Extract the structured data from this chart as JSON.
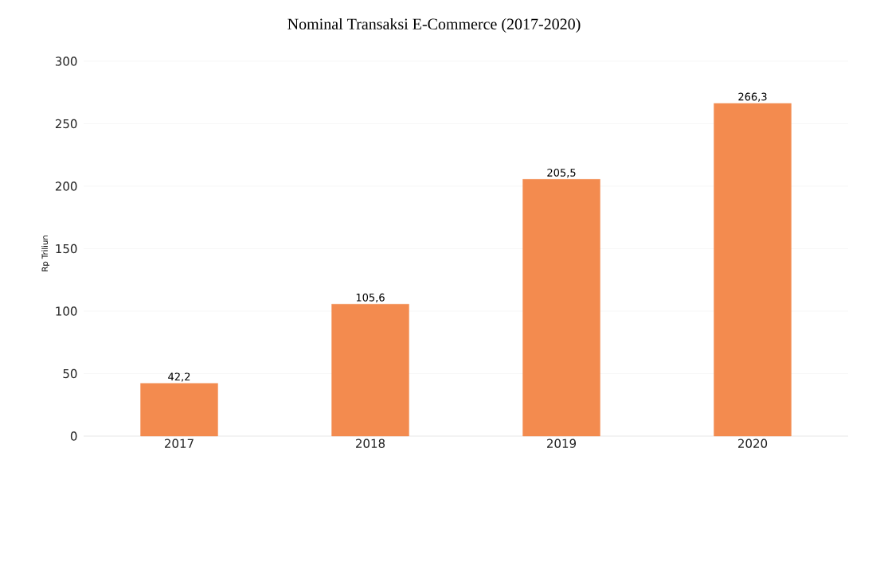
{
  "chart_data": {
    "type": "bar",
    "title": "Nominal Transaksi E-Commerce (2017-2020)",
    "ylabel": "Rp Triliun",
    "categories": [
      "2017",
      "2018",
      "2019",
      "2020"
    ],
    "values": [
      42.2,
      105.6,
      205.5,
      266.3
    ],
    "value_labels": [
      "42,2",
      "105,6",
      "205,5",
      "266,3"
    ],
    "color": "#f38b4f",
    "ylim": [
      0,
      300
    ],
    "yticks": [
      0,
      50,
      100,
      150,
      200,
      250,
      300
    ],
    "grid": "y"
  }
}
